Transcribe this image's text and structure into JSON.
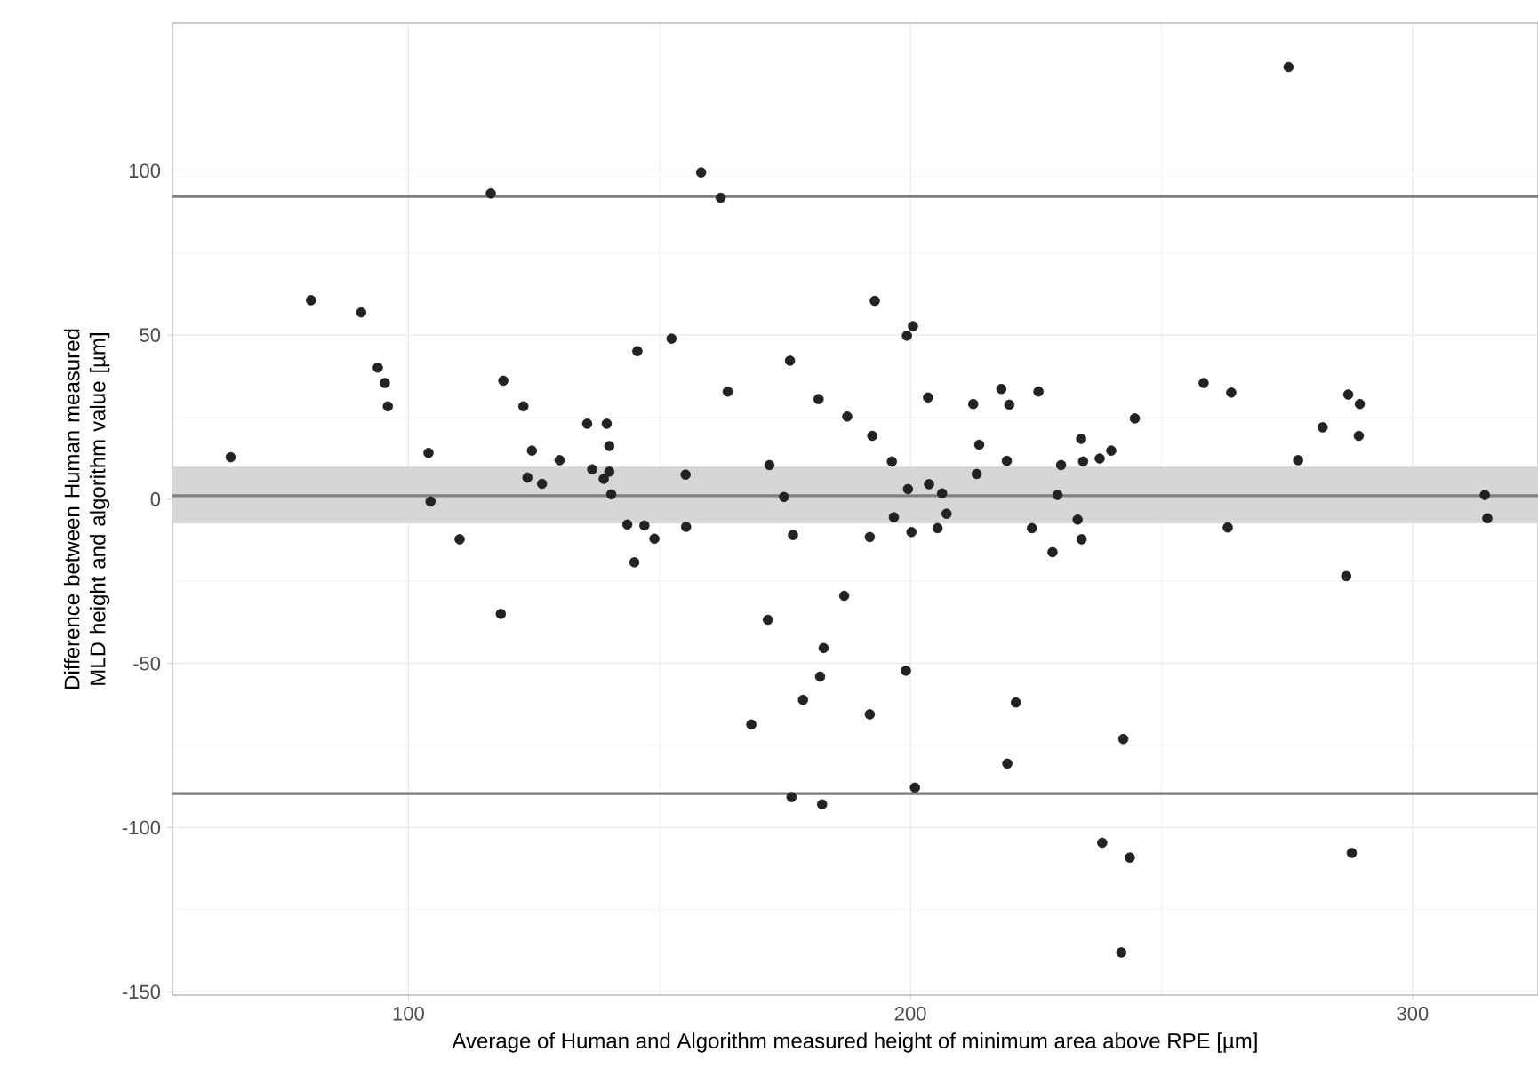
{
  "chart_data": {
    "type": "scatter",
    "xlabel": "Average of Human and Algorithm measured height of minimum area above RPE [µm]",
    "ylabel": "Difference between Human measured MLD height and algorithm value [µm]",
    "xlim": [
      53,
      325
    ],
    "ylim": [
      -151,
      145
    ],
    "xticks": [
      100,
      200,
      300
    ],
    "yticks": [
      -150,
      -100,
      -50,
      0,
      50,
      100
    ],
    "grid": true,
    "marker": "circle",
    "ref_lines": [
      {
        "axis": "y",
        "value": 92.2,
        "color": "#7f7f7f"
      },
      {
        "axis": "y",
        "value": 1.1,
        "color": "#7f7f7f"
      },
      {
        "axis": "y",
        "value": -89.6,
        "color": "#7f7f7f"
      }
    ],
    "bands": [
      {
        "axis": "y",
        "from": -7.3,
        "to": 9.9,
        "color": "#d6d6d6"
      }
    ],
    "series": [
      {
        "color": "#222222",
        "x": [
          64.6,
          80.6,
          90.6,
          93.9,
          95.3,
          95.9,
          104.0,
          104.4,
          110.2,
          116.4,
          118.9,
          118.4,
          122.9,
          124.6,
          123.7,
          126.6,
          130.1,
          135.6,
          139.5,
          136.6,
          140.0,
          140.0,
          138.9,
          140.4,
          143.6,
          145.0,
          145.6,
          147.0,
          149.0,
          152.4,
          155.2,
          155.3,
          158.3,
          162.2,
          163.6,
          171.6,
          171.9,
          168.3,
          174.8,
          176.0,
          176.6,
          176.3,
          178.6,
          181.7,
          182.0,
          182.7,
          182.4,
          186.8,
          187.4,
          192.4,
          191.9,
          191.9,
          192.9,
          196.3,
          196.7,
          199.1,
          199.3,
          200.5,
          199.5,
          200.2,
          200.9,
          203.5,
          203.7,
          206.3,
          205.4,
          207.2,
          212.5,
          213.7,
          213.2,
          218.1,
          219.2,
          219.7,
          221.0,
          219.3,
          224.2,
          225.5,
          228.3,
          230.0,
          229.3,
          233.3,
          234.0,
          234.4,
          234.1,
          237.7,
          240.0,
          244.7,
          242.4,
          238.2,
          243.7,
          242.0,
          258.4,
          263.9,
          263.2,
          275.3,
          277.2,
          282.1,
          287.2,
          289.5,
          289.3,
          286.8,
          287.9,
          314.4,
          314.9
        ],
        "values": [
          12.8,
          60.6,
          56.9,
          40.1,
          35.4,
          28.3,
          14.1,
          -0.7,
          -12.2,
          93.1,
          36.1,
          -34.9,
          28.3,
          14.8,
          6.6,
          4.7,
          11.9,
          23.0,
          23.0,
          9.1,
          16.2,
          8.4,
          6.2,
          1.5,
          -7.7,
          -19.2,
          45.1,
          -8.0,
          -12.0,
          48.9,
          7.5,
          -8.4,
          99.5,
          91.8,
          32.8,
          -36.7,
          10.4,
          -68.6,
          0.7,
          42.2,
          -10.9,
          -90.7,
          -61.1,
          30.5,
          -54.0,
          -45.3,
          -92.9,
          -29.4,
          25.2,
          19.3,
          -11.5,
          -65.5,
          60.4,
          11.5,
          -5.5,
          -52.2,
          49.8,
          52.7,
          3.1,
          -10.0,
          -87.8,
          31.0,
          4.6,
          1.8,
          -8.8,
          -4.4,
          29.0,
          16.6,
          7.7,
          33.6,
          11.7,
          28.8,
          -61.9,
          -80.5,
          -8.8,
          32.8,
          -16.1,
          10.4,
          1.3,
          -6.2,
          18.4,
          11.5,
          -12.2,
          12.4,
          14.8,
          24.6,
          -73.0,
          -104.6,
          -109.1,
          -138.0,
          35.4,
          32.5,
          -8.6,
          131.6,
          11.9,
          21.9,
          31.9,
          29.0,
          19.3,
          -23.4,
          -107.7,
          1.3,
          -5.8
        ]
      }
    ]
  }
}
